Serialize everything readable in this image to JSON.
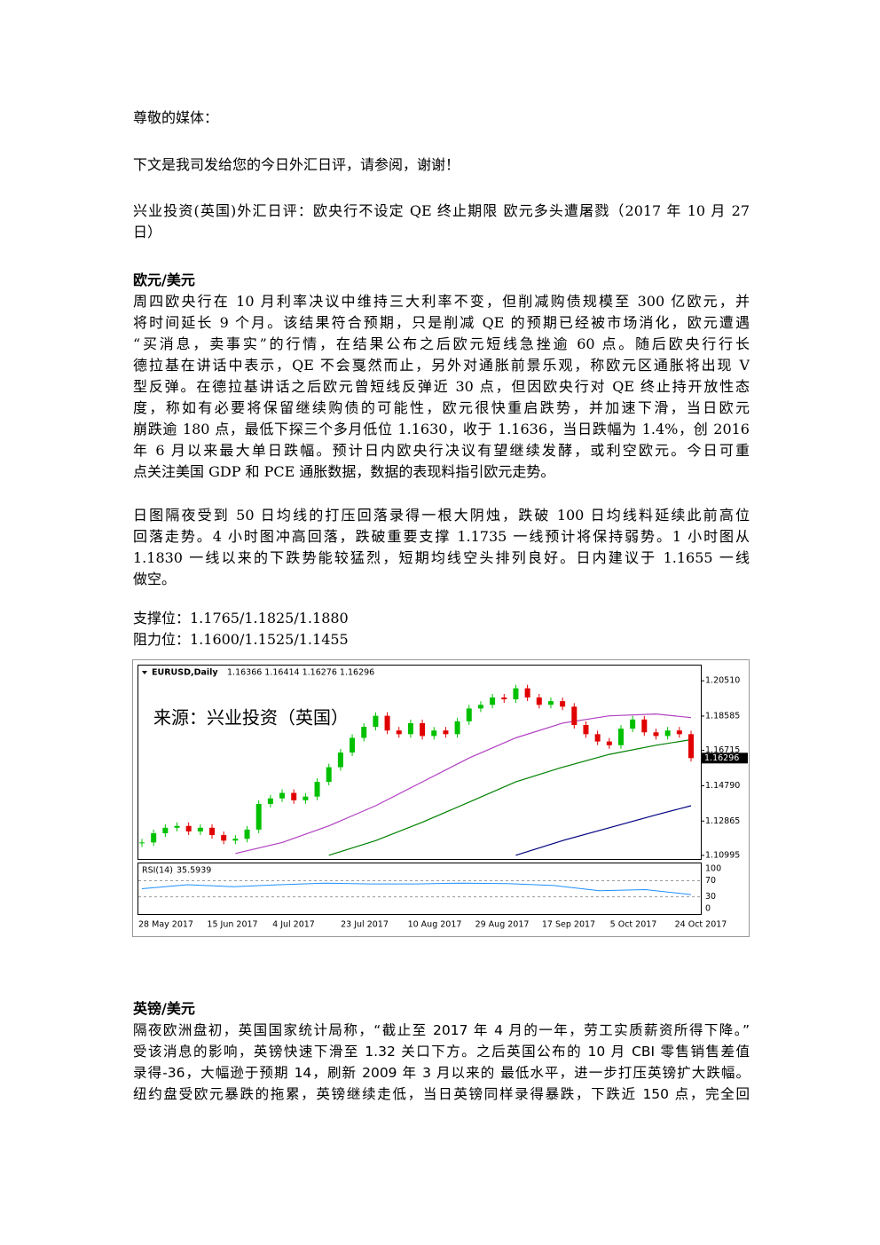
{
  "greeting": "尊敬的媒体：",
  "intro": "下文是我司发给您的今日外汇日评，请参阅，谢谢！",
  "headline": [
    "兴业投资(英国)外汇日评：欧央行不设定 QE 终止期限 欧元多头遭屠戮（2017 年 10 月 27",
    "日）"
  ],
  "eur": {
    "heading": "欧元/美元",
    "paragraphs": [
      [
        "周四欧央行在 10 月利率决议中维持三大利率不变，但削减购债规模至 300 亿欧元，并",
        "将时间延长 9 个月。该结果符合预期，只是削减 QE 的预期已经被市场消化，欧元遭遇",
        "“买消息，卖事实”的行情，在结果公布之后欧元短线急挫逾 60 点。随后欧央行行长",
        "德拉基在讲话中表示，QE 不会戛然而止，另外对通胀前景乐观，称欧元区通胀将出现 V",
        "型反弹。在德拉基讲话之后欧元曾短线反弹近 30 点，但因欧央行对 QE 终止持开放性态",
        "度，称如有必要将保留继续购债的可能性，欧元很快重启跌势，并加速下滑，当日欧元",
        "崩跌逾 180 点，最低下探三个多月低位 1.1630，收于 1.1636，当日跌幅为 1.4%，创 2016",
        "年 6 月以来最大单日跌幅。预计日内欧央行决议有望继续发酵，或利空欧元。今日可重",
        "点关注美国 GDP 和 PCE 通胀数据，数据的表现料指引欧元走势。"
      ],
      [
        "日图隔夜受到 50 日均线的打压回落录得一根大阴烛，跌破 100 日均线料延续此前高位",
        "回落走势。4 小时图冲高回落，跌破重要支撑 1.1735 一线预计将保持弱势。1 小时图从",
        "1.1830 一线以来的下跌势能较猛烈，短期均线空头排列良好。日内建议于 1.1655 一线",
        "做空。"
      ]
    ],
    "support": "支撑位：1.1765/1.1825/1.1880",
    "resistance": "阻力位：1.1600/1.1525/1.1455"
  },
  "chart": {
    "symbol": "EURUSD,Daily",
    "quote": "1.16366 1.16414 1.16276 1.16296",
    "watermark": "来源：兴业投资（英国）",
    "up_color": "#00c000",
    "down_color": "#e00000",
    "close": [
      1.117,
      1.122,
      1.125,
      1.126,
      1.123,
      1.125,
      1.121,
      1.118,
      1.119,
      1.124,
      1.138,
      1.141,
      1.144,
      1.14,
      1.142,
      1.15,
      1.158,
      1.166,
      1.174,
      1.18,
      1.186,
      1.178,
      1.176,
      1.182,
      1.175,
      1.178,
      1.176,
      1.183,
      1.19,
      1.192,
      1.196,
      1.195,
      1.201,
      1.196,
      1.192,
      1.194,
      1.191,
      1.181,
      1.176,
      1.172,
      1.17,
      1.179,
      1.184,
      1.177,
      1.175,
      1.178,
      1.176,
      1.16296
    ],
    "ma": [
      {
        "color": "#b040c0",
        "values": [
          null,
          null,
          1.111,
          1.117,
          1.126,
          1.137,
          1.15,
          1.163,
          1.174,
          1.182,
          1.186,
          1.187,
          1.185
        ]
      },
      {
        "color": "#008000",
        "values": [
          null,
          null,
          null,
          null,
          1.11,
          1.118,
          1.128,
          1.139,
          1.15,
          1.158,
          1.165,
          1.17,
          1.173
        ]
      },
      {
        "color": "#000080",
        "values": [
          null,
          null,
          null,
          null,
          null,
          null,
          null,
          null,
          1.11,
          1.118,
          1.125,
          1.132,
          1.137
        ]
      }
    ],
    "ylim": [
      1.1075,
      1.2134
    ],
    "yticks": [
      {
        "value": 1.2051,
        "label": "1.20510"
      },
      {
        "value": 1.18585,
        "label": "1.18585"
      },
      {
        "value": 1.16715,
        "label": "1.16715"
      },
      {
        "value": 1.1479,
        "label": "1.14790"
      },
      {
        "value": 1.12865,
        "label": "1.12865"
      },
      {
        "value": 1.10995,
        "label": "1.10995"
      }
    ],
    "rsi_label": "RSI(14)",
    "rsi_color": "#1e90ff",
    "rsi": [
      50,
      60,
      55,
      60,
      64,
      62,
      62,
      64,
      63,
      58,
      45,
      48,
      35.5939
    ],
    "rsi_ylim": [
      -15,
      113
    ],
    "rsi_yticks": [
      100,
      70,
      30,
      0
    ],
    "dates": [
      "28 May 2017",
      "15 Jun 2017",
      "4 Jul 2017",
      "23 Jul 2017",
      "10 Aug 2017",
      "29 Aug 2017",
      "17 Sep 2017",
      "5 Oct 2017",
      "24 Oct 2017"
    ]
  },
  "gbp": {
    "heading": "英镑/美元",
    "lines": [
      "隔夜欧洲盘初，英国国家统计局称，“截止至 2017 年 4 月的一年，劳工实质薪资所得下降。”",
      "受该消息的影响，英镑快速下滑至 1.32 关口下方。之后英国公布的 10 月 CBI 零售销售差值",
      "录得-36，大幅逊于预期 14，刷新 2009 年 3 月以来的 最低水平，进一步打压英镑扩大跌幅。",
      "纽约盘受欧元暴跌的拖累，英镑继续走低，当日英镑同样录得暴跌，下跌近 150 点，完全回"
    ]
  }
}
